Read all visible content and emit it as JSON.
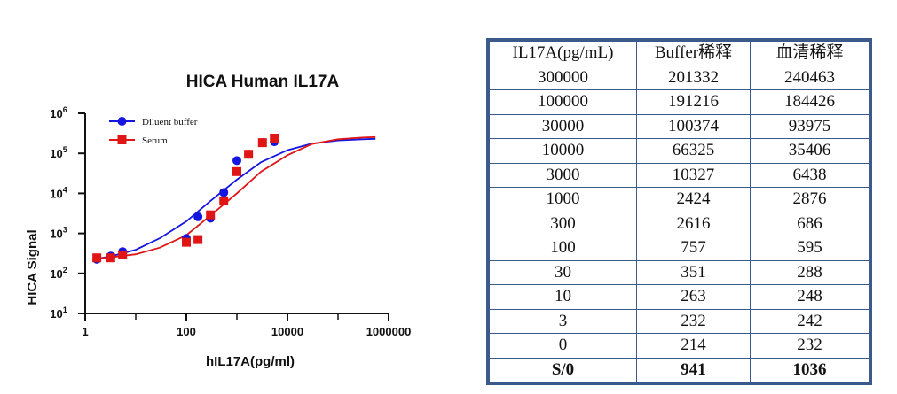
{
  "chart_data": {
    "type": "scatter",
    "title": "HICA Human IL17A",
    "xlabel": "hIL17A(pg/ml)",
    "ylabel": "HICA Signal",
    "x_scale": "log",
    "y_scale": "log",
    "xlim": [
      1,
      1000000
    ],
    "ylim": [
      10,
      1000000
    ],
    "x_ticks": [
      {
        "value": 1,
        "label": "1"
      },
      {
        "value": 100,
        "label": "100"
      },
      {
        "value": 10000,
        "label": "10000"
      },
      {
        "value": 1000000,
        "label": "1000000"
      }
    ],
    "y_ticks": [
      {
        "value": 10,
        "base": "10",
        "exp": "1"
      },
      {
        "value": 100,
        "base": "10",
        "exp": "2"
      },
      {
        "value": 1000,
        "base": "10",
        "exp": "3"
      },
      {
        "value": 10000,
        "base": "10",
        "exp": "4"
      },
      {
        "value": 100000,
        "base": "10",
        "exp": "5"
      },
      {
        "value": 1000000,
        "base": "10",
        "exp": "6"
      }
    ],
    "legend_position": "top-left",
    "grid": false,
    "series": [
      {
        "name": "Diluent buffer",
        "color": "#1515e0",
        "marker": "circle",
        "points": [
          {
            "x": 1.7,
            "y": 225
          },
          {
            "x": 3.2,
            "y": 270
          },
          {
            "x": 5.5,
            "y": 350
          },
          {
            "x": 100,
            "y": 750
          },
          {
            "x": 170,
            "y": 2600
          },
          {
            "x": 300,
            "y": 2400
          },
          {
            "x": 550,
            "y": 10500
          },
          {
            "x": 1000,
            "y": 66000
          },
          {
            "x": 1700,
            "y": 95000
          },
          {
            "x": 3200,
            "y": 185000
          },
          {
            "x": 5500,
            "y": 195000
          }
        ],
        "curve": [
          {
            "x": 1.5,
            "y": 228
          },
          {
            "x": 3,
            "y": 262
          },
          {
            "x": 10,
            "y": 390
          },
          {
            "x": 30,
            "y": 760
          },
          {
            "x": 100,
            "y": 2000
          },
          {
            "x": 300,
            "y": 6500
          },
          {
            "x": 1000,
            "y": 22000
          },
          {
            "x": 3000,
            "y": 60000
          },
          {
            "x": 10000,
            "y": 120000
          },
          {
            "x": 30000,
            "y": 175000
          },
          {
            "x": 100000,
            "y": 210000
          },
          {
            "x": 300000,
            "y": 225000
          },
          {
            "x": 550000,
            "y": 230000
          }
        ]
      },
      {
        "name": "Serum",
        "color": "#e01515",
        "marker": "square",
        "points": [
          {
            "x": 1.7,
            "y": 245
          },
          {
            "x": 3.2,
            "y": 245
          },
          {
            "x": 5.5,
            "y": 290
          },
          {
            "x": 100,
            "y": 600
          },
          {
            "x": 170,
            "y": 700
          },
          {
            "x": 300,
            "y": 2900
          },
          {
            "x": 550,
            "y": 6500
          },
          {
            "x": 1000,
            "y": 35000
          },
          {
            "x": 1700,
            "y": 95000
          },
          {
            "x": 3200,
            "y": 185000
          },
          {
            "x": 5500,
            "y": 240000
          }
        ],
        "curve": [
          {
            "x": 1.5,
            "y": 235
          },
          {
            "x": 3,
            "y": 250
          },
          {
            "x": 10,
            "y": 300
          },
          {
            "x": 30,
            "y": 440
          },
          {
            "x": 100,
            "y": 900
          },
          {
            "x": 300,
            "y": 2800
          },
          {
            "x": 1000,
            "y": 10000
          },
          {
            "x": 3000,
            "y": 35000
          },
          {
            "x": 10000,
            "y": 90000
          },
          {
            "x": 30000,
            "y": 170000
          },
          {
            "x": 100000,
            "y": 225000
          },
          {
            "x": 300000,
            "y": 248000
          },
          {
            "x": 550000,
            "y": 255000
          }
        ]
      }
    ]
  },
  "table": {
    "headers": [
      "IL17A(pg/mL)",
      "Buffer稀释",
      "血清稀释"
    ],
    "rows": [
      [
        "300000",
        "201332",
        "240463"
      ],
      [
        "100000",
        "191216",
        "184426"
      ],
      [
        "30000",
        "100374",
        "93975"
      ],
      [
        "10000",
        "66325",
        "35406"
      ],
      [
        "3000",
        "10327",
        "6438"
      ],
      [
        "1000",
        "2424",
        "2876"
      ],
      [
        "300",
        "2616",
        "686"
      ],
      [
        "100",
        "757",
        "595"
      ],
      [
        "30",
        "351",
        "288"
      ],
      [
        "10",
        "263",
        "248"
      ],
      [
        "3",
        "232",
        "242"
      ],
      [
        "0",
        "214",
        "232"
      ],
      [
        "S/0",
        "941",
        "1036"
      ]
    ],
    "summary_row_index": 12,
    "border_color": "#3a5a8c"
  }
}
